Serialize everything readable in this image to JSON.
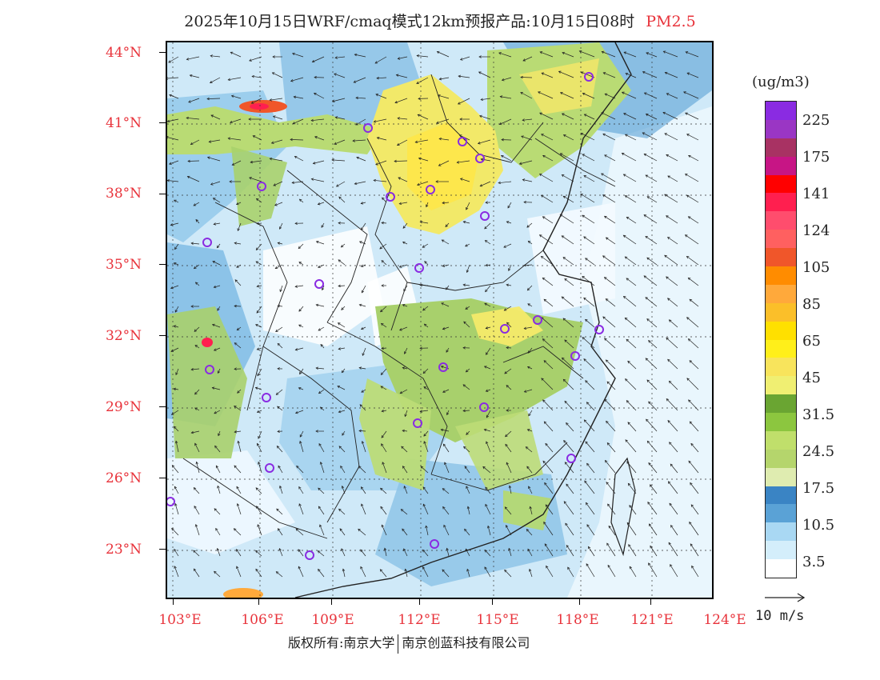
{
  "title": {
    "text": "2025年10月15日WRF/cmaq模式12km预报产品:10月15日08时",
    "pollutant": "PM2.5",
    "pollutant_color": "#e8333b"
  },
  "map": {
    "lat_labels": [
      "44°N",
      "41°N",
      "38°N",
      "35°N",
      "32°N",
      "29°N",
      "26°N",
      "23°N"
    ],
    "lon_labels": [
      "103°E",
      "106°E",
      "109°E",
      "112°E",
      "115°E",
      "118°E",
      "121°E",
      "124°E"
    ],
    "station_marker": "circle-marker",
    "station_color": "#8a2be2"
  },
  "legend": {
    "unit": "(ug/m3)",
    "colors": [
      "#8a2be2",
      "#9a36c4",
      "#a83263",
      "#c71585",
      "#ff0000",
      "#ff1f4f",
      "#ff4d6d",
      "#ff6060",
      "#f0562a",
      "#ff8c00",
      "#ffa93b",
      "#fbbf29",
      "#ffe000",
      "#ffef1a",
      "#f8e45c",
      "#f0ef72",
      "#6aa532",
      "#8cc63f",
      "#c0df6b",
      "#b5d56c",
      "#dfecb0",
      "#3a84c4",
      "#5aa2d6",
      "#a9d8f3",
      "#d4eefb",
      "#ffffff"
    ],
    "labels": [
      "225",
      "175",
      "141",
      "124",
      "105",
      "85",
      "65",
      "45",
      "31.5",
      "24.5",
      "17.5",
      "10.5",
      "3.5"
    ]
  },
  "wind": {
    "reference_label": "10 m/s",
    "arrow": "reference-arrow-icon"
  },
  "footer": {
    "owner1": "版权所有:南京大学",
    "owner2": "南京创蓝科技有限公司"
  }
}
